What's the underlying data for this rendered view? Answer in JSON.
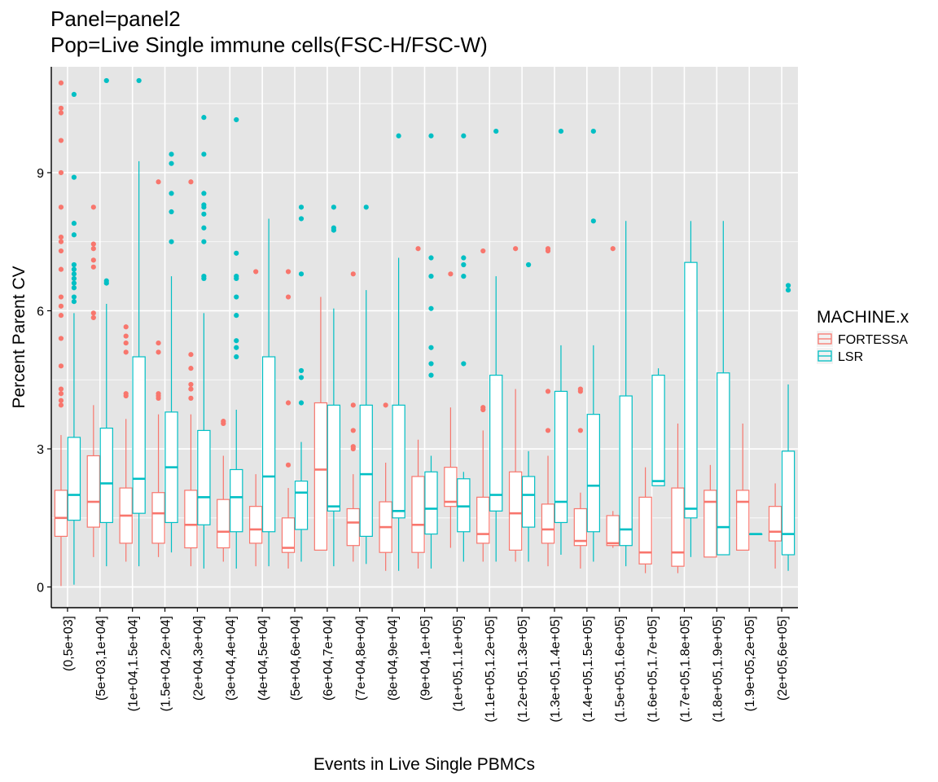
{
  "chart_data": {
    "type": "box",
    "title": [
      "Panel=panel2",
      "Pop=Live Single immune cells(FSC-H/FSC-W)"
    ],
    "xlabel": "Events in Live Single PBMCs",
    "ylabel": "Percent Parent CV",
    "ylim": [
      -0.45,
      11.3
    ],
    "yticks": [
      0,
      3,
      6,
      9
    ],
    "grid": true,
    "legend": {
      "title": "MACHINE.x",
      "position": "right",
      "entries": [
        "FORTESSA",
        "LSR"
      ]
    },
    "colors": {
      "FORTESSA": "#F8766D",
      "LSR": "#00BFC4",
      "panel": "#E5E5E5",
      "grid": "#FFFFFF"
    },
    "categories": [
      "(0,5e+03]",
      "(5e+03,1e+04]",
      "(1e+04,1.5e+04]",
      "(1.5e+04,2e+04]",
      "(2e+04,3e+04]",
      "(3e+04,4e+04]",
      "(4e+04,5e+04]",
      "(5e+04,6e+04]",
      "(6e+04,7e+04]",
      "(7e+04,8e+04]",
      "(8e+04,9e+04]",
      "(9e+04,1e+05]",
      "(1e+05,1.1e+05]",
      "(1.1e+05,1.2e+05]",
      "(1.2e+05,1.3e+05]",
      "(1.3e+05,1.4e+05]",
      "(1.4e+05,1.5e+05]",
      "(1.5e+05,1.6e+05]",
      "(1.6e+05,1.7e+05]",
      "(1.7e+05,1.8e+05]",
      "(1.8e+05,1.9e+05]",
      "(1.9e+05,2e+05]",
      "(2e+05,6e+05]"
    ],
    "series": [
      {
        "name": "FORTESSA",
        "boxes": [
          {
            "lo": 0.02,
            "q1": 1.1,
            "med": 1.5,
            "q3": 2.1,
            "hi": 3.3,
            "out": [
              3.95,
              4.05,
              4.2,
              4.3,
              4.8,
              5.4,
              5.9,
              6.1,
              6.3,
              6.9,
              7.3,
              7.5,
              7.6,
              8.25,
              9.0,
              9.7,
              10.3,
              10.4,
              10.95
            ]
          },
          {
            "lo": 0.65,
            "q1": 1.3,
            "med": 1.85,
            "q3": 2.85,
            "hi": 3.95,
            "out": [
              5.85,
              5.95,
              6.95,
              7.1,
              7.35,
              7.45,
              8.25
            ]
          },
          {
            "lo": 0.55,
            "q1": 0.95,
            "med": 1.55,
            "q3": 2.15,
            "hi": 3.65,
            "out": [
              4.15,
              4.2,
              5.1,
              5.3,
              5.45,
              5.65
            ]
          },
          {
            "lo": 0.65,
            "q1": 0.95,
            "med": 1.6,
            "q3": 2.05,
            "hi": 3.75,
            "out": [
              4.1,
              4.15,
              4.2,
              5.1,
              5.3,
              8.8
            ]
          },
          {
            "lo": 0.45,
            "q1": 0.85,
            "med": 1.35,
            "q3": 2.1,
            "hi": 3.75,
            "out": [
              4.1,
              4.3,
              4.4,
              4.75,
              5.05,
              8.8
            ]
          },
          {
            "lo": 0.55,
            "q1": 0.85,
            "med": 1.2,
            "q3": 1.9,
            "hi": 2.85,
            "out": [
              3.55,
              3.6
            ]
          },
          {
            "lo": 0.45,
            "q1": 0.95,
            "med": 1.25,
            "q3": 1.75,
            "hi": 2.45,
            "out": [
              6.85
            ]
          },
          {
            "lo": 0.4,
            "q1": 0.75,
            "med": 0.85,
            "q3": 1.5,
            "hi": 2.15,
            "out": [
              2.65,
              4.0,
              6.3,
              6.85
            ]
          },
          {
            "lo": 0.8,
            "q1": 0.8,
            "med": 2.55,
            "q3": 4.0,
            "hi": 6.3,
            "out": []
          },
          {
            "lo": 0.55,
            "q1": 0.9,
            "med": 1.4,
            "q3": 1.7,
            "hi": 2.45,
            "out": [
              3.0,
              3.05,
              3.4,
              3.95,
              6.8
            ]
          },
          {
            "lo": 0.35,
            "q1": 0.75,
            "med": 1.3,
            "q3": 1.85,
            "hi": 2.7,
            "out": [
              3.95
            ]
          },
          {
            "lo": 0.4,
            "q1": 0.75,
            "med": 1.35,
            "q3": 2.4,
            "hi": 3.2,
            "out": [
              7.35
            ]
          },
          {
            "lo": 0.85,
            "q1": 1.75,
            "med": 1.85,
            "q3": 2.6,
            "hi": 3.9,
            "out": [
              6.8
            ]
          },
          {
            "lo": 0.55,
            "q1": 0.95,
            "med": 1.15,
            "q3": 1.95,
            "hi": 3.4,
            "out": [
              3.85,
              3.9,
              7.3
            ]
          },
          {
            "lo": 0.55,
            "q1": 0.8,
            "med": 1.6,
            "q3": 2.5,
            "hi": 4.3,
            "out": [
              7.35
            ]
          },
          {
            "lo": 0.45,
            "q1": 0.95,
            "med": 1.25,
            "q3": 1.8,
            "hi": 2.85,
            "out": [
              3.4,
              4.25,
              7.3,
              7.35
            ]
          },
          {
            "lo": 0.4,
            "q1": 0.9,
            "med": 1.0,
            "q3": 1.7,
            "hi": 2.05,
            "out": [
              3.4,
              4.25,
              4.3
            ]
          },
          {
            "lo": 0.85,
            "q1": 0.9,
            "med": 0.95,
            "q3": 1.55,
            "hi": 1.65,
            "out": [
              7.35
            ]
          },
          {
            "lo": 0.3,
            "q1": 0.5,
            "med": 0.75,
            "q3": 1.95,
            "hi": 2.6,
            "out": []
          },
          {
            "lo": 0.3,
            "q1": 0.45,
            "med": 0.75,
            "q3": 2.15,
            "hi": 3.55,
            "out": []
          },
          {
            "lo": 0.65,
            "q1": 0.65,
            "med": 1.85,
            "q3": 2.1,
            "hi": 2.65,
            "out": []
          },
          {
            "lo": 0.8,
            "q1": 0.8,
            "med": 1.85,
            "q3": 2.1,
            "hi": 3.55,
            "out": []
          },
          {
            "lo": 0.4,
            "q1": 1.0,
            "med": 1.2,
            "q3": 1.75,
            "hi": 2.25,
            "out": []
          }
        ]
      },
      {
        "name": "LSR",
        "boxes": [
          {
            "lo": 0.05,
            "q1": 1.45,
            "med": 2.0,
            "q3": 3.25,
            "hi": 5.95,
            "out": [
              6.2,
              6.3,
              6.5,
              6.6,
              6.7,
              6.8,
              6.9,
              7.0,
              7.65,
              7.9,
              8.9,
              10.7
            ]
          },
          {
            "lo": 0.45,
            "q1": 1.4,
            "med": 2.25,
            "q3": 3.45,
            "hi": 6.15,
            "out": [
              6.6,
              6.65,
              11.0
            ]
          },
          {
            "lo": 0.45,
            "q1": 1.6,
            "med": 2.35,
            "q3": 5.0,
            "hi": 9.25,
            "out": [
              11.0
            ]
          },
          {
            "lo": 0.75,
            "q1": 1.4,
            "med": 2.6,
            "q3": 3.8,
            "hi": 6.75,
            "out": [
              7.5,
              8.15,
              8.55,
              9.2,
              9.4
            ]
          },
          {
            "lo": 0.4,
            "q1": 1.35,
            "med": 1.95,
            "q3": 3.4,
            "hi": 5.95,
            "out": [
              6.7,
              6.75,
              7.5,
              7.8,
              8.1,
              8.25,
              8.3,
              8.55,
              9.4,
              10.2
            ]
          },
          {
            "lo": 0.4,
            "q1": 1.2,
            "med": 1.95,
            "q3": 2.55,
            "hi": 3.85,
            "out": [
              5.0,
              5.2,
              5.35,
              5.9,
              6.3,
              6.7,
              6.75,
              7.25,
              10.15
            ]
          },
          {
            "lo": 0.45,
            "q1": 1.2,
            "med": 2.4,
            "q3": 5.0,
            "hi": 8.0,
            "out": []
          },
          {
            "lo": 0.55,
            "q1": 1.25,
            "med": 2.05,
            "q3": 2.3,
            "hi": 3.15,
            "out": [
              4.0,
              4.55,
              4.7,
              6.8,
              8.0,
              8.25
            ]
          },
          {
            "lo": 0.45,
            "q1": 1.65,
            "med": 1.75,
            "q3": 3.95,
            "hi": 6.05,
            "out": [
              7.75,
              7.8,
              8.25
            ]
          },
          {
            "lo": 0.5,
            "q1": 1.1,
            "med": 2.45,
            "q3": 3.95,
            "hi": 6.45,
            "out": [
              8.25
            ]
          },
          {
            "lo": 0.35,
            "q1": 1.5,
            "med": 1.65,
            "q3": 3.95,
            "hi": 7.15,
            "out": [
              9.8
            ]
          },
          {
            "lo": 0.4,
            "q1": 1.15,
            "med": 1.7,
            "q3": 2.5,
            "hi": 2.85,
            "out": [
              4.6,
              4.85,
              5.2,
              6.05,
              6.75,
              7.15,
              9.8
            ]
          },
          {
            "lo": 0.55,
            "q1": 1.2,
            "med": 1.75,
            "q3": 2.35,
            "hi": 2.5,
            "out": [
              4.85,
              6.75,
              7.0,
              7.15,
              9.8
            ]
          },
          {
            "lo": 0.55,
            "q1": 1.65,
            "med": 2.0,
            "q3": 4.6,
            "hi": 6.75,
            "out": [
              9.9
            ]
          },
          {
            "lo": 0.55,
            "q1": 1.3,
            "med": 2.0,
            "q3": 2.4,
            "hi": 2.95,
            "out": [
              7.0
            ]
          },
          {
            "lo": 0.7,
            "q1": 1.4,
            "med": 1.85,
            "q3": 4.25,
            "hi": 5.25,
            "out": [
              9.9
            ]
          },
          {
            "lo": 0.55,
            "q1": 1.2,
            "med": 2.2,
            "q3": 3.75,
            "hi": 5.25,
            "out": [
              7.95,
              9.9
            ]
          },
          {
            "lo": 0.45,
            "q1": 0.9,
            "med": 1.25,
            "q3": 4.15,
            "hi": 7.95,
            "out": []
          },
          {
            "lo": 2.2,
            "q1": 2.2,
            "med": 2.3,
            "q3": 4.6,
            "hi": 4.75,
            "out": []
          },
          {
            "lo": 0.65,
            "q1": 1.5,
            "med": 1.7,
            "q3": 7.05,
            "hi": 7.95,
            "out": []
          },
          {
            "lo": 0.7,
            "q1": 0.7,
            "med": 1.3,
            "q3": 4.65,
            "hi": 7.95,
            "out": []
          },
          {
            "lo": 1.15,
            "q1": 1.15,
            "med": 1.15,
            "q3": 1.15,
            "hi": 1.15,
            "out": []
          },
          {
            "lo": 0.35,
            "q1": 0.7,
            "med": 1.15,
            "q3": 2.95,
            "hi": 4.4,
            "out": [
              6.45,
              6.55
            ]
          }
        ]
      }
    ]
  }
}
